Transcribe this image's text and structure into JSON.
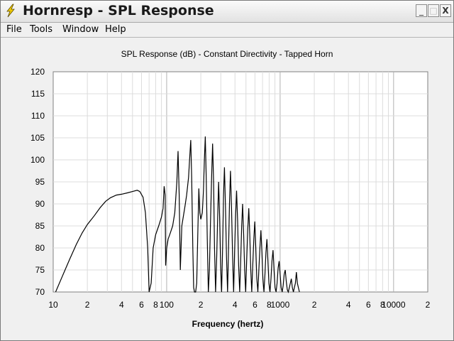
{
  "window": {
    "title": "Hornresp - SPL Response",
    "min_glyph": "_",
    "max_glyph": "□",
    "close_glyph": "X",
    "icon": "lightning-bolt-icon",
    "accent": "#e8c000"
  },
  "menu": [
    "File",
    "Tools",
    "Window",
    "Help"
  ],
  "chart_data": {
    "type": "line",
    "title": "SPL Response (dB) - Constant Directivity - Tapped Horn",
    "xlabel": "Frequency (hertz)",
    "ylabel": "",
    "x_scale": "log",
    "xlim": [
      10,
      20000
    ],
    "ylim": [
      70,
      120
    ],
    "y_ticks": [
      70,
      75,
      80,
      85,
      90,
      95,
      100,
      105,
      110,
      115,
      120
    ],
    "x_ticks": [
      {
        "value": 10,
        "label": "10"
      },
      {
        "value": 20,
        "label": "2"
      },
      {
        "value": 40,
        "label": "4"
      },
      {
        "value": 60,
        "label": "6"
      },
      {
        "value": 80,
        "label": "8"
      },
      {
        "value": 100,
        "label": "100"
      },
      {
        "value": 200,
        "label": "2"
      },
      {
        "value": 400,
        "label": "4"
      },
      {
        "value": 600,
        "label": "6"
      },
      {
        "value": 800,
        "label": "8"
      },
      {
        "value": 1000,
        "label": "1000"
      },
      {
        "value": 2000,
        "label": "2"
      },
      {
        "value": 4000,
        "label": "4"
      },
      {
        "value": 6000,
        "label": "6"
      },
      {
        "value": 8000,
        "label": "8"
      },
      {
        "value": 10000,
        "label": "10000"
      },
      {
        "value": 20000,
        "label": "2"
      }
    ],
    "grid": true,
    "series": [
      {
        "color": "#000000",
        "points": [
          [
            10.5,
            70
          ],
          [
            12,
            73.5
          ],
          [
            14,
            77.5
          ],
          [
            16,
            80.8
          ],
          [
            18,
            83.4
          ],
          [
            20,
            85.3
          ],
          [
            23,
            87.3
          ],
          [
            26,
            89.2
          ],
          [
            29,
            90.6
          ],
          [
            32,
            91.4
          ],
          [
            36,
            92
          ],
          [
            40,
            92.2
          ],
          [
            45,
            92.5
          ],
          [
            50,
            92.8
          ],
          [
            55,
            93.1
          ],
          [
            58,
            92.8
          ],
          [
            62,
            91.5
          ],
          [
            65,
            88
          ],
          [
            68,
            80
          ],
          [
            70,
            70
          ],
          [
            73,
            72
          ],
          [
            76,
            80
          ],
          [
            80,
            83
          ],
          [
            85,
            85
          ],
          [
            90,
            87
          ],
          [
            93,
            89
          ],
          [
            95,
            94
          ],
          [
            97,
            92
          ],
          [
            98,
            76
          ],
          [
            100,
            80
          ],
          [
            103,
            82
          ],
          [
            108,
            83.5
          ],
          [
            113,
            85
          ],
          [
            118,
            88
          ],
          [
            123,
            95
          ],
          [
            126,
            102
          ],
          [
            129,
            92
          ],
          [
            132,
            75
          ],
          [
            136,
            85
          ],
          [
            140,
            87
          ],
          [
            145,
            89.5
          ],
          [
            150,
            92
          ],
          [
            156,
            96
          ],
          [
            160,
            101
          ],
          [
            163,
            104.5
          ],
          [
            166,
            96
          ],
          [
            170,
            80
          ],
          [
            173,
            71
          ],
          [
            176,
            70
          ],
          [
            180,
            70
          ],
          [
            184,
            72
          ],
          [
            188,
            83
          ],
          [
            192,
            93.5
          ],
          [
            196,
            88
          ],
          [
            200,
            86.5
          ],
          [
            206,
            88
          ],
          [
            211,
            93
          ],
          [
            215,
            100
          ],
          [
            219,
            105.3
          ],
          [
            223,
            96
          ],
          [
            228,
            82
          ],
          [
            233,
            70
          ],
          [
            238,
            75
          ],
          [
            243,
            85
          ],
          [
            249,
            96
          ],
          [
            254,
            103.7
          ],
          [
            259,
            95
          ],
          [
            264,
            80
          ],
          [
            270,
            70
          ],
          [
            276,
            78
          ],
          [
            282,
            88
          ],
          [
            287,
            95
          ],
          [
            293,
            87
          ],
          [
            299,
            76
          ],
          [
            305,
            70
          ],
          [
            311,
            80
          ],
          [
            317,
            92
          ],
          [
            323,
            98.3
          ],
          [
            330,
            89
          ],
          [
            337,
            78
          ],
          [
            344,
            70
          ],
          [
            351,
            80
          ],
          [
            358,
            90
          ],
          [
            365,
            97.5
          ],
          [
            373,
            89
          ],
          [
            381,
            78
          ],
          [
            389,
            70
          ],
          [
            397,
            79
          ],
          [
            405,
            87
          ],
          [
            413,
            93
          ],
          [
            422,
            86
          ],
          [
            431,
            76
          ],
          [
            440,
            70
          ],
          [
            449,
            77
          ],
          [
            458,
            85
          ],
          [
            467,
            90
          ],
          [
            477,
            83
          ],
          [
            487,
            75
          ],
          [
            497,
            70
          ],
          [
            507,
            77
          ],
          [
            518,
            84
          ],
          [
            529,
            89
          ],
          [
            540,
            83
          ],
          [
            551,
            75
          ],
          [
            562,
            70
          ],
          [
            574,
            76
          ],
          [
            586,
            82
          ],
          [
            598,
            86
          ],
          [
            610,
            80
          ],
          [
            623,
            73
          ],
          [
            636,
            70
          ],
          [
            649,
            75
          ],
          [
            663,
            80
          ],
          [
            677,
            84
          ],
          [
            691,
            79
          ],
          [
            705,
            73
          ],
          [
            720,
            70
          ],
          [
            735,
            74
          ],
          [
            750,
            79
          ],
          [
            765,
            82
          ],
          [
            781,
            77
          ],
          [
            797,
            72
          ],
          [
            814,
            70
          ],
          [
            831,
            73
          ],
          [
            848,
            77
          ],
          [
            866,
            79.5
          ],
          [
            884,
            75
          ],
          [
            902,
            71
          ],
          [
            921,
            70
          ],
          [
            940,
            72
          ],
          [
            960,
            75.5
          ],
          [
            980,
            77
          ],
          [
            1000,
            74
          ],
          [
            1021,
            71
          ],
          [
            1042,
            70
          ],
          [
            1064,
            71.5
          ],
          [
            1086,
            74
          ],
          [
            1109,
            75
          ],
          [
            1132,
            72.5
          ],
          [
            1156,
            70.5
          ],
          [
            1180,
            70
          ],
          [
            1205,
            71
          ],
          [
            1230,
            72
          ],
          [
            1255,
            73
          ],
          [
            1281,
            71
          ],
          [
            1308,
            70
          ],
          [
            1335,
            71
          ],
          [
            1362,
            72
          ],
          [
            1390,
            74.5
          ],
          [
            1419,
            72
          ],
          [
            1448,
            71
          ],
          [
            1480,
            70
          ]
        ]
      }
    ]
  }
}
